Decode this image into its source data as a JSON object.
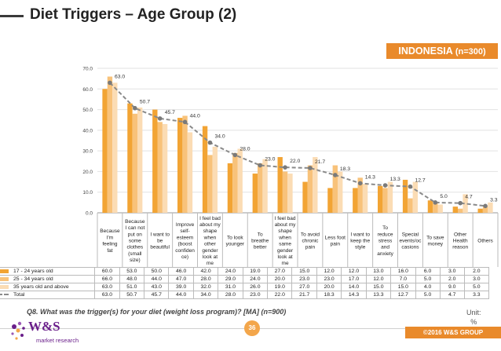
{
  "header": {
    "title": "Diet Triggers – Age Group (2)"
  },
  "badge": {
    "country": "INDONESIA",
    "n": "(n=300)"
  },
  "chart_data": {
    "type": "bar",
    "title": "Diet Triggers – Age Group (2)",
    "ylim": [
      0,
      70
    ],
    "yticks": [
      "0.0",
      "10.0",
      "20.0",
      "30.0",
      "40.0",
      "50.0",
      "60.0",
      "70.0"
    ],
    "categories": [
      [
        "Because",
        "I'm",
        "feeling",
        "fat"
      ],
      [
        "Because",
        "I can not",
        "put on",
        "some",
        "clothes",
        "(small",
        "size)"
      ],
      [
        "I want to",
        "be",
        "beautiful"
      ],
      [
        "Improve",
        "self-",
        "esteem",
        "(boost",
        "confiden",
        "ce)"
      ],
      [
        "I feel bad",
        "about my",
        "shape",
        "when",
        "other",
        "gender",
        "look at",
        "me"
      ],
      [
        "To look",
        "younger"
      ],
      [
        "To",
        "breathe",
        "better"
      ],
      [
        "I feel bad",
        "about my",
        "shape",
        "when",
        "same",
        "gender",
        "look at",
        "me"
      ],
      [
        "To avoid",
        "chronic",
        "pain"
      ],
      [
        "Less foot",
        "pain"
      ],
      [
        "I want to",
        "keep the",
        "style"
      ],
      [
        "To",
        "reduce",
        "stress",
        "and",
        "anxiety"
      ],
      [
        "Special",
        "events/oc",
        "casions"
      ],
      [
        "To save",
        "money"
      ],
      [
        "Other",
        "Health",
        "reason"
      ],
      [
        "Others"
      ]
    ],
    "series": [
      {
        "name": "17 - 24 years old",
        "color": "#f2a434",
        "values": [
          60.0,
          53.0,
          50.0,
          46.0,
          42.0,
          24.0,
          19.0,
          27.0,
          15.0,
          12.0,
          12.0,
          13.0,
          16.0,
          6.0,
          3.0,
          2.0
        ],
        "labels": [
          "60.0",
          "53.0",
          "50.0",
          "46.0",
          "42.0",
          "24.0",
          "19.0",
          "27.0",
          "15.0",
          "12.0",
          "12.0",
          "13.0",
          "16.0",
          "6.0",
          "3.0",
          "2.0"
        ]
      },
      {
        "name": "25 - 34 years old",
        "color": "#f8c27a",
        "values": [
          66.0,
          48.0,
          44.0,
          47.0,
          28.0,
          29.0,
          24.0,
          20.0,
          23.0,
          23.0,
          17.0,
          12.0,
          7.0,
          5.0,
          2.0,
          3.0
        ],
        "labels": [
          "66.0",
          "48.0",
          "44.0",
          "47.0",
          "28.0",
          "29.0",
          "24.0",
          "20.0",
          "23.0",
          "23.0",
          "17.0",
          "12.0",
          "7.0",
          "5.0",
          "2.0",
          "3.0"
        ]
      },
      {
        "name": "35 years old and above",
        "color": "#fbdcb4",
        "values": [
          63.0,
          51.0,
          43.0,
          39.0,
          32.0,
          31.0,
          26.0,
          19.0,
          27.0,
          20.0,
          14.0,
          15.0,
          15.0,
          4.0,
          9.0,
          5.0
        ],
        "labels": [
          "63.0",
          "51.0",
          "43.0",
          "39.0",
          "32.0",
          "31.0",
          "26.0",
          "19.0",
          "27.0",
          "20.0",
          "14.0",
          "15.0",
          "15.0",
          "4.0",
          "9.0",
          "5.0"
        ]
      },
      {
        "name": "Total",
        "color": "#8a8a8a",
        "kind": "line",
        "values": [
          63.0,
          50.7,
          45.7,
          44.0,
          34.0,
          28.0,
          23.0,
          22.0,
          21.7,
          18.3,
          14.3,
          13.3,
          12.7,
          5.0,
          4.7,
          3.3
        ],
        "labels": [
          "63.0",
          "50.7",
          "45.7",
          "44.0",
          "34.0",
          "28.0",
          "23.0",
          "22.0",
          "21.7",
          "18.3",
          "14.3",
          "13.3",
          "12.7",
          "5.0",
          "4.7",
          "3.3"
        ]
      }
    ]
  },
  "footnote": {
    "question": "Q8. What was the trigger(s) for your diet (weight loss program)? [MA] (n=900)"
  },
  "unit": {
    "label": "Unit:",
    "value": "%"
  },
  "footer": {
    "logo_text": "W&S",
    "logo_sub": "market research",
    "page_number": "36",
    "copyright": "©2016 W&S GROUP"
  }
}
